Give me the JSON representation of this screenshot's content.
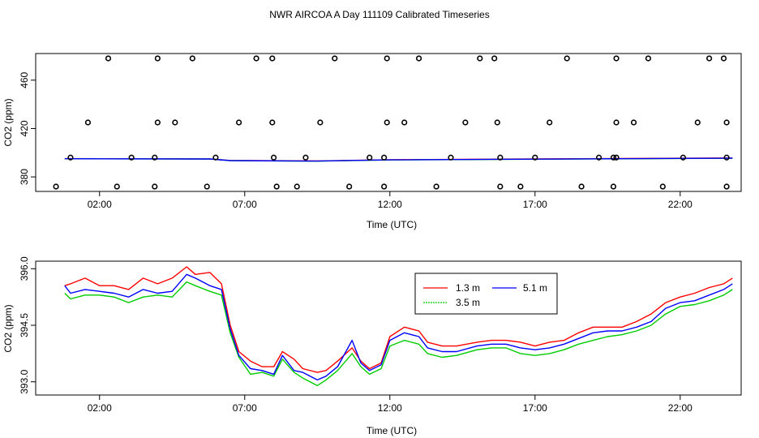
{
  "title": "NWR AIRCOA A  Day 111109  Calibrated Timeseries",
  "chart_data": [
    {
      "type": "scatter",
      "panel": "top",
      "xlabel": "Time (UTC)",
      "ylabel": "CO2 (ppm)",
      "xlim": [
        -0.2,
        24.1
      ],
      "ylim": [
        368,
        482
      ],
      "xticks": [
        2,
        7,
        12,
        17,
        22
      ],
      "xtick_labels": [
        "02:00",
        "07:00",
        "12:00",
        "17:00",
        "22:00"
      ],
      "yticks": [
        380,
        420,
        460
      ],
      "ytick_labels": [
        "380",
        "420",
        "460"
      ],
      "calibration_points": [
        {
          "ppm": 478,
          "t": [
            2.3,
            4.0,
            5.2,
            7.4,
            7.95,
            10.1,
            11.9,
            13.0,
            15.1,
            15.6,
            18.1,
            19.8,
            20.9,
            23.0,
            23.5
          ]
        },
        {
          "ppm": 425,
          "t": [
            1.6,
            4.0,
            4.6,
            6.8,
            7.95,
            9.6,
            11.9,
            12.5,
            14.6,
            15.7,
            17.5,
            19.8,
            20.4,
            22.6,
            23.6
          ]
        },
        {
          "ppm": 396,
          "t": [
            1.0,
            3.1,
            3.9,
            6.0,
            8.0,
            9.1,
            11.3,
            11.8,
            14.1,
            15.8,
            17.0,
            19.2,
            19.7,
            19.8,
            22.1,
            23.6
          ]
        },
        {
          "ppm": 372,
          "t": [
            0.5,
            2.6,
            3.9,
            5.7,
            8.1,
            8.8,
            10.6,
            11.8,
            13.6,
            15.8,
            16.5,
            18.6,
            19.7,
            21.4,
            23.6
          ]
        }
      ],
      "series": [
        {
          "name": "1.3 m",
          "color": "#ff0000",
          "values": [
            {
              "t": 0.8,
              "ppm": 395.1
            },
            {
              "t": 5.8,
              "ppm": 394.9
            },
            {
              "t": 6.5,
              "ppm": 393.6
            },
            {
              "t": 9.5,
              "ppm": 393.2
            },
            {
              "t": 12.0,
              "ppm": 394.2
            },
            {
              "t": 23.8,
              "ppm": 395.6
            }
          ]
        },
        {
          "name": "3.5 m",
          "color": "#00cc00",
          "values": [
            {
              "t": 0.8,
              "ppm": 395.0
            },
            {
              "t": 5.8,
              "ppm": 394.8
            },
            {
              "t": 6.5,
              "ppm": 393.5
            },
            {
              "t": 9.5,
              "ppm": 393.0
            },
            {
              "t": 12.0,
              "ppm": 394.0
            },
            {
              "t": 23.8,
              "ppm": 395.4
            }
          ]
        },
        {
          "name": "5.1 m",
          "color": "#0000ff",
          "values": [
            {
              "t": 0.8,
              "ppm": 395.0
            },
            {
              "t": 5.8,
              "ppm": 394.8
            },
            {
              "t": 6.5,
              "ppm": 393.5
            },
            {
              "t": 9.5,
              "ppm": 393.1
            },
            {
              "t": 12.0,
              "ppm": 394.1
            },
            {
              "t": 23.8,
              "ppm": 395.5
            }
          ]
        }
      ]
    },
    {
      "type": "line",
      "panel": "bottom",
      "xlabel": "Time (UTC)",
      "ylabel": "CO2 (ppm)",
      "xlim": [
        -0.2,
        24.1
      ],
      "ylim": [
        392.65,
        396.2
      ],
      "xticks": [
        2,
        7,
        12,
        17,
        22
      ],
      "xtick_labels": [
        "02:00",
        "07:00",
        "12:00",
        "17:00",
        "22:00"
      ],
      "yticks": [
        393.0,
        394.5,
        396.0
      ],
      "ytick_labels": [
        "393.0",
        "394.5",
        "396.0"
      ],
      "legend": {
        "position": "top-right",
        "entries": [
          "1.3 m",
          "3.5 m",
          "5.1 m"
        ]
      },
      "series": [
        {
          "name": "1.3 m",
          "color": "#ff0000",
          "values": [
            {
              "t": 0.8,
              "ppm": 395.55
            },
            {
              "t": 1.0,
              "ppm": 395.6
            },
            {
              "t": 1.5,
              "ppm": 395.75
            },
            {
              "t": 2.0,
              "ppm": 395.55
            },
            {
              "t": 2.5,
              "ppm": 395.55
            },
            {
              "t": 3.0,
              "ppm": 395.45
            },
            {
              "t": 3.5,
              "ppm": 395.75
            },
            {
              "t": 4.0,
              "ppm": 395.6
            },
            {
              "t": 4.5,
              "ppm": 395.75
            },
            {
              "t": 5.0,
              "ppm": 396.05
            },
            {
              "t": 5.3,
              "ppm": 395.85
            },
            {
              "t": 5.8,
              "ppm": 395.9
            },
            {
              "t": 6.2,
              "ppm": 395.6
            },
            {
              "t": 6.5,
              "ppm": 394.5
            },
            {
              "t": 6.8,
              "ppm": 393.8
            },
            {
              "t": 7.2,
              "ppm": 393.55
            },
            {
              "t": 7.6,
              "ppm": 393.4
            },
            {
              "t": 8.0,
              "ppm": 393.4
            },
            {
              "t": 8.3,
              "ppm": 393.8
            },
            {
              "t": 8.7,
              "ppm": 393.6
            },
            {
              "t": 9.0,
              "ppm": 393.35
            },
            {
              "t": 9.5,
              "ppm": 393.25
            },
            {
              "t": 9.8,
              "ppm": 393.3
            },
            {
              "t": 10.2,
              "ppm": 393.55
            },
            {
              "t": 10.7,
              "ppm": 393.9
            },
            {
              "t": 11.0,
              "ppm": 393.55
            },
            {
              "t": 11.3,
              "ppm": 393.35
            },
            {
              "t": 11.7,
              "ppm": 393.5
            },
            {
              "t": 12.0,
              "ppm": 394.2
            },
            {
              "t": 12.5,
              "ppm": 394.45
            },
            {
              "t": 13.0,
              "ppm": 394.35
            },
            {
              "t": 13.3,
              "ppm": 394.05
            },
            {
              "t": 13.8,
              "ppm": 393.95
            },
            {
              "t": 14.3,
              "ppm": 393.95
            },
            {
              "t": 15.0,
              "ppm": 394.05
            },
            {
              "t": 15.5,
              "ppm": 394.1
            },
            {
              "t": 16.0,
              "ppm": 394.1
            },
            {
              "t": 16.5,
              "ppm": 394.05
            },
            {
              "t": 17.0,
              "ppm": 393.95
            },
            {
              "t": 17.5,
              "ppm": 394.05
            },
            {
              "t": 18.0,
              "ppm": 394.1
            },
            {
              "t": 18.5,
              "ppm": 394.3
            },
            {
              "t": 19.0,
              "ppm": 394.45
            },
            {
              "t": 19.5,
              "ppm": 394.45
            },
            {
              "t": 20.0,
              "ppm": 394.45
            },
            {
              "t": 20.5,
              "ppm": 394.6
            },
            {
              "t": 21.0,
              "ppm": 394.8
            },
            {
              "t": 21.5,
              "ppm": 395.1
            },
            {
              "t": 22.0,
              "ppm": 395.25
            },
            {
              "t": 22.5,
              "ppm": 395.35
            },
            {
              "t": 23.0,
              "ppm": 395.5
            },
            {
              "t": 23.5,
              "ppm": 395.6
            },
            {
              "t": 23.8,
              "ppm": 395.75
            }
          ]
        },
        {
          "name": "3.5 m",
          "color": "#00cc00",
          "values": [
            {
              "t": 0.8,
              "ppm": 395.35
            },
            {
              "t": 1.0,
              "ppm": 395.2
            },
            {
              "t": 1.5,
              "ppm": 395.3
            },
            {
              "t": 2.0,
              "ppm": 395.3
            },
            {
              "t": 2.5,
              "ppm": 395.25
            },
            {
              "t": 3.0,
              "ppm": 395.1
            },
            {
              "t": 3.5,
              "ppm": 395.25
            },
            {
              "t": 4.0,
              "ppm": 395.3
            },
            {
              "t": 4.5,
              "ppm": 395.25
            },
            {
              "t": 5.0,
              "ppm": 395.65
            },
            {
              "t": 5.3,
              "ppm": 395.55
            },
            {
              "t": 5.8,
              "ppm": 395.4
            },
            {
              "t": 6.2,
              "ppm": 395.3
            },
            {
              "t": 6.5,
              "ppm": 394.3
            },
            {
              "t": 6.8,
              "ppm": 393.65
            },
            {
              "t": 7.2,
              "ppm": 393.2
            },
            {
              "t": 7.6,
              "ppm": 393.25
            },
            {
              "t": 8.0,
              "ppm": 393.15
            },
            {
              "t": 8.3,
              "ppm": 393.6
            },
            {
              "t": 8.7,
              "ppm": 393.25
            },
            {
              "t": 9.0,
              "ppm": 393.1
            },
            {
              "t": 9.5,
              "ppm": 392.9
            },
            {
              "t": 9.8,
              "ppm": 393.05
            },
            {
              "t": 10.2,
              "ppm": 393.3
            },
            {
              "t": 10.7,
              "ppm": 393.75
            },
            {
              "t": 11.0,
              "ppm": 393.4
            },
            {
              "t": 11.3,
              "ppm": 393.2
            },
            {
              "t": 11.7,
              "ppm": 393.35
            },
            {
              "t": 12.0,
              "ppm": 393.95
            },
            {
              "t": 12.5,
              "ppm": 394.1
            },
            {
              "t": 13.0,
              "ppm": 394.0
            },
            {
              "t": 13.3,
              "ppm": 393.75
            },
            {
              "t": 13.8,
              "ppm": 393.65
            },
            {
              "t": 14.3,
              "ppm": 393.7
            },
            {
              "t": 15.0,
              "ppm": 393.85
            },
            {
              "t": 15.5,
              "ppm": 393.9
            },
            {
              "t": 16.0,
              "ppm": 393.9
            },
            {
              "t": 16.5,
              "ppm": 393.75
            },
            {
              "t": 17.0,
              "ppm": 393.7
            },
            {
              "t": 17.5,
              "ppm": 393.75
            },
            {
              "t": 18.0,
              "ppm": 393.85
            },
            {
              "t": 18.5,
              "ppm": 394.0
            },
            {
              "t": 19.0,
              "ppm": 394.1
            },
            {
              "t": 19.5,
              "ppm": 394.2
            },
            {
              "t": 20.0,
              "ppm": 394.25
            },
            {
              "t": 20.5,
              "ppm": 394.35
            },
            {
              "t": 21.0,
              "ppm": 394.5
            },
            {
              "t": 21.5,
              "ppm": 394.8
            },
            {
              "t": 22.0,
              "ppm": 395.0
            },
            {
              "t": 22.5,
              "ppm": 395.05
            },
            {
              "t": 23.0,
              "ppm": 395.15
            },
            {
              "t": 23.5,
              "ppm": 395.3
            },
            {
              "t": 23.8,
              "ppm": 395.45
            }
          ]
        },
        {
          "name": "5.1 m",
          "color": "#0000ff",
          "values": [
            {
              "t": 0.8,
              "ppm": 395.55
            },
            {
              "t": 1.0,
              "ppm": 395.35
            },
            {
              "t": 1.5,
              "ppm": 395.45
            },
            {
              "t": 2.0,
              "ppm": 395.4
            },
            {
              "t": 2.5,
              "ppm": 395.35
            },
            {
              "t": 3.0,
              "ppm": 395.25
            },
            {
              "t": 3.5,
              "ppm": 395.45
            },
            {
              "t": 4.0,
              "ppm": 395.35
            },
            {
              "t": 4.5,
              "ppm": 395.4
            },
            {
              "t": 5.0,
              "ppm": 395.85
            },
            {
              "t": 5.3,
              "ppm": 395.75
            },
            {
              "t": 5.8,
              "ppm": 395.55
            },
            {
              "t": 6.2,
              "ppm": 395.45
            },
            {
              "t": 6.5,
              "ppm": 394.4
            },
            {
              "t": 6.8,
              "ppm": 393.7
            },
            {
              "t": 7.2,
              "ppm": 393.35
            },
            {
              "t": 7.6,
              "ppm": 393.3
            },
            {
              "t": 8.0,
              "ppm": 393.2
            },
            {
              "t": 8.3,
              "ppm": 393.7
            },
            {
              "t": 8.7,
              "ppm": 393.3
            },
            {
              "t": 9.0,
              "ppm": 393.25
            },
            {
              "t": 9.5,
              "ppm": 393.05
            },
            {
              "t": 9.8,
              "ppm": 393.15
            },
            {
              "t": 10.2,
              "ppm": 393.4
            },
            {
              "t": 10.7,
              "ppm": 394.1
            },
            {
              "t": 11.0,
              "ppm": 393.5
            },
            {
              "t": 11.3,
              "ppm": 393.3
            },
            {
              "t": 11.7,
              "ppm": 393.45
            },
            {
              "t": 12.0,
              "ppm": 394.1
            },
            {
              "t": 12.5,
              "ppm": 394.3
            },
            {
              "t": 13.0,
              "ppm": 394.2
            },
            {
              "t": 13.3,
              "ppm": 393.9
            },
            {
              "t": 13.8,
              "ppm": 393.8
            },
            {
              "t": 14.3,
              "ppm": 393.8
            },
            {
              "t": 15.0,
              "ppm": 393.95
            },
            {
              "t": 15.5,
              "ppm": 394.0
            },
            {
              "t": 16.0,
              "ppm": 394.0
            },
            {
              "t": 16.5,
              "ppm": 393.9
            },
            {
              "t": 17.0,
              "ppm": 393.85
            },
            {
              "t": 17.5,
              "ppm": 393.9
            },
            {
              "t": 18.0,
              "ppm": 394.0
            },
            {
              "t": 18.5,
              "ppm": 394.15
            },
            {
              "t": 19.0,
              "ppm": 394.3
            },
            {
              "t": 19.5,
              "ppm": 394.35
            },
            {
              "t": 20.0,
              "ppm": 394.35
            },
            {
              "t": 20.5,
              "ppm": 394.45
            },
            {
              "t": 21.0,
              "ppm": 394.6
            },
            {
              "t": 21.5,
              "ppm": 394.95
            },
            {
              "t": 22.0,
              "ppm": 395.1
            },
            {
              "t": 22.5,
              "ppm": 395.15
            },
            {
              "t": 23.0,
              "ppm": 395.3
            },
            {
              "t": 23.5,
              "ppm": 395.45
            },
            {
              "t": 23.8,
              "ppm": 395.6
            }
          ]
        }
      ]
    }
  ]
}
